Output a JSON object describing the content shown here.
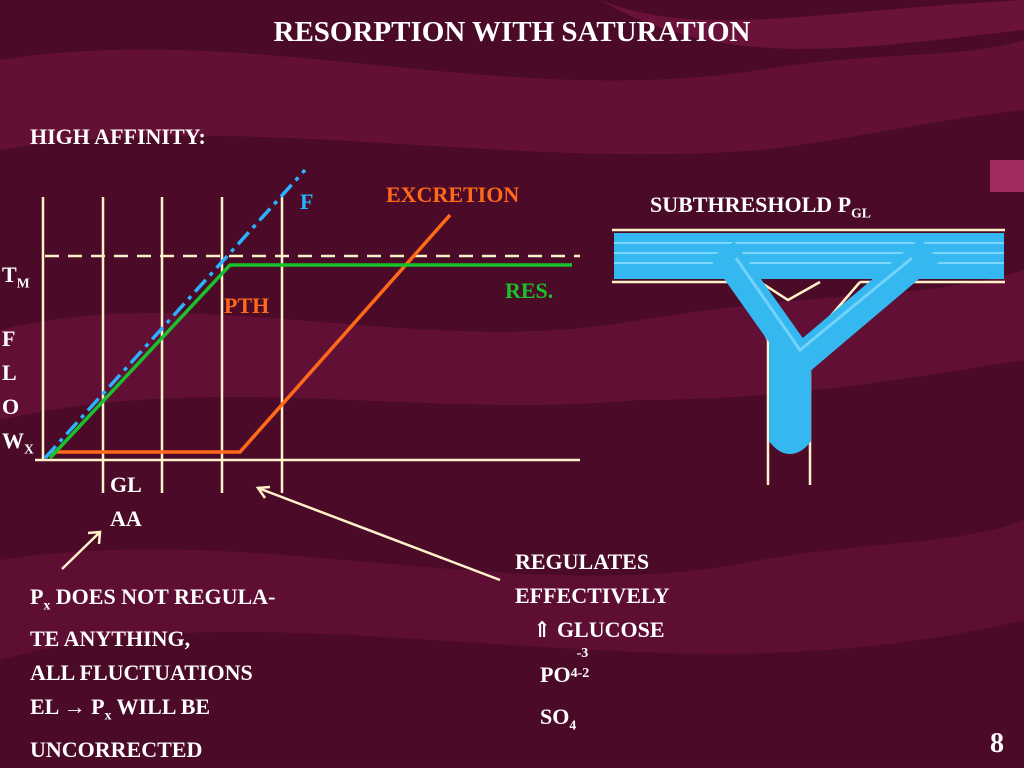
{
  "slide": {
    "title": "RESORPTION  WITH  SATURATION",
    "page_number": "8"
  },
  "graph": {
    "heading": "HIGH  AFFINITY:",
    "f_label": "F",
    "excretion_label": "EXCRETION",
    "res_label": "RES.",
    "pth_label": "PTH",
    "tm_main": "T",
    "tm_sub": "M",
    "flow_letters": [
      "F",
      "L",
      "O",
      "W"
    ],
    "flow_sub": "X",
    "gl_label": "GL",
    "aa_label": "AA"
  },
  "tube": {
    "label": "SUBTHRESHOLD   P",
    "label_sub": "GL"
  },
  "left_note": {
    "line1_p": "P",
    "line1_sub": "x",
    "line1_rest": " DOES NOT REGULA-",
    "line2": "TE ANYTHING,",
    "line3": "ALL FLUCTUATIONS",
    "line4_pre": "EL ",
    "line4_arrow": "→",
    "line4_p": " P",
    "line4_sub": "x",
    "line4_rest": "  WILL BE",
    "line5": "UNCORRECTED"
  },
  "right_note": {
    "line1": "REGULATES",
    "line2": "EFFECTIVELY",
    "glucose_arrow": "⇑",
    "glucose": " GLUCOSE",
    "po": "PO",
    "po_sub": "4-2",
    "po_sup": "-3",
    "so": "SO",
    "so_sub": "4"
  },
  "colors": {
    "background": "#4a0a28",
    "swoosh": "#8a1a4a",
    "excretion_line": "#ff6a1a",
    "resorption_line": "#19c12a",
    "filtration_line": "#2ab2ff",
    "axis_lines": "#fff2c8",
    "tube_fill": "#35b8f0"
  }
}
